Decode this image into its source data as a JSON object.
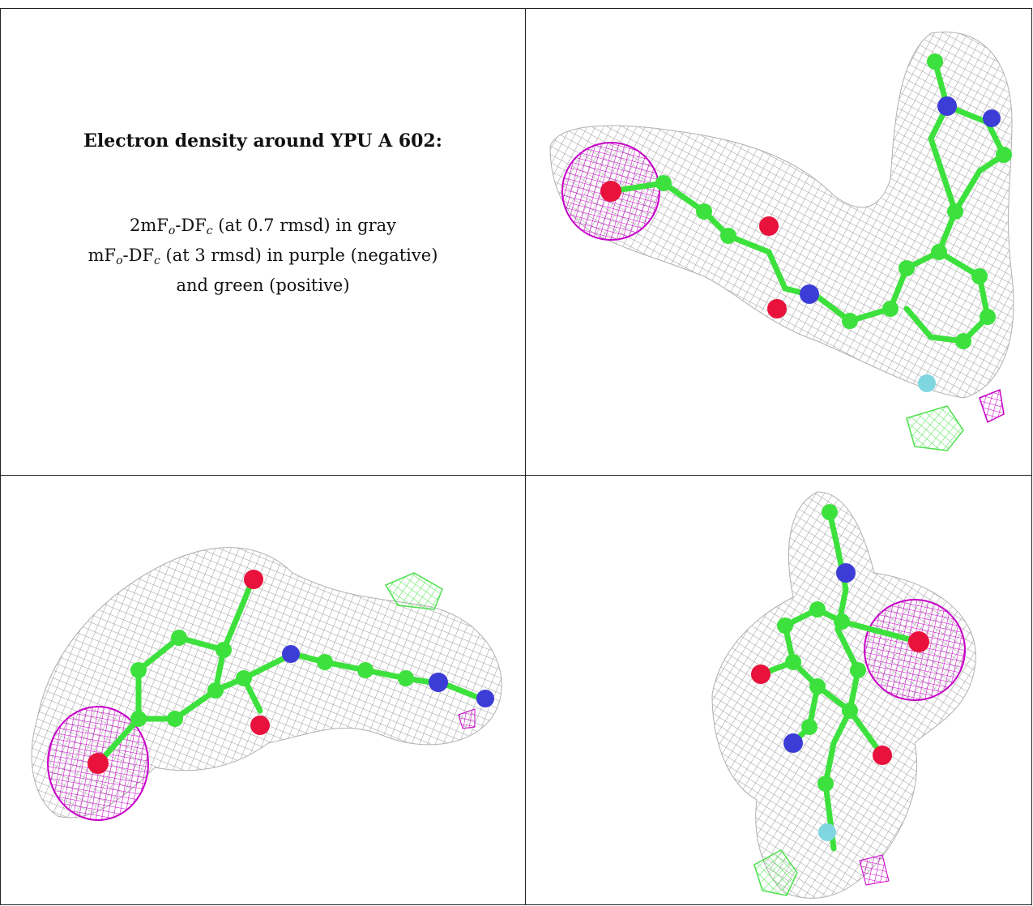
{
  "caption": {
    "title": "Electron density around YPU A 602:",
    "line1": {
      "a": "2mF",
      "b": "o",
      "c": "-DF",
      "d": "c",
      "e": " (at 0.7 rmsd) in gray"
    },
    "line2": {
      "a": "mF",
      "b": "o",
      "c": "-DF",
      "d": "c",
      "e": " (at 3 rmsd) in purple (negative)"
    },
    "line3": "and green (positive)"
  },
  "colors": {
    "map_2fofc": "#9a9a9a",
    "map_negative": "#c800c8",
    "map_positive": "#4be14b",
    "carbon": "#3de13d",
    "oxygen": "#e8123c",
    "nitrogen": "#3c3cd6",
    "fluorine": "#7fd6e0"
  }
}
